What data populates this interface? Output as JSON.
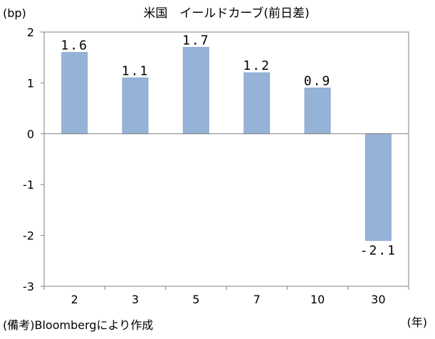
{
  "chart_data": {
    "type": "bar",
    "title": "米国　イールドカーブ(前日差)",
    "y_unit_label": "(bp)",
    "x_unit_label": "(年)",
    "source_note": "(備考)Bloombergにより作成",
    "categories": [
      "2",
      "3",
      "5",
      "7",
      "10",
      "30"
    ],
    "values": [
      1.6,
      1.1,
      1.7,
      1.2,
      0.9,
      -2.1
    ],
    "data_labels": [
      "1.6",
      "1.1",
      "1.7",
      "1.2",
      "0.9",
      "-2.1"
    ],
    "ylim": [
      -3,
      2
    ],
    "yticks": [
      2,
      1,
      0,
      -1,
      -2,
      -3
    ],
    "ytick_labels": [
      "2",
      "1",
      "0",
      "-1",
      "-2",
      "-3"
    ],
    "grid": false,
    "bar_color": "#95b3d7",
    "bar_edge_color": "#8eaad2"
  }
}
